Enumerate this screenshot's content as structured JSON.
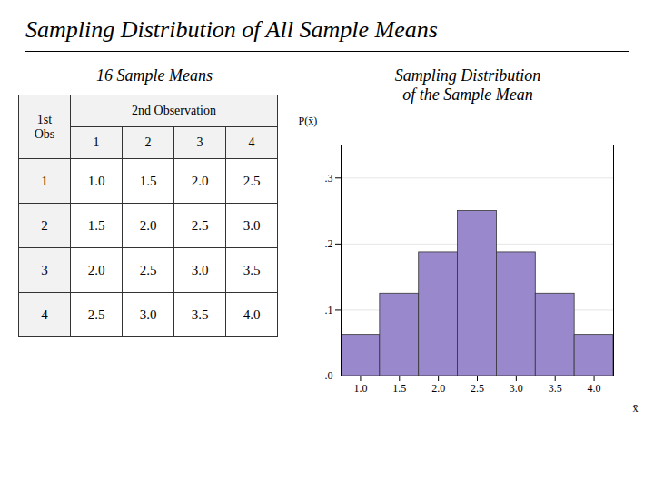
{
  "chart_data": {
    "type": "bar",
    "title": "Sampling Distribution of All Sample Means",
    "subtitle": [
      "Sampling Distribution",
      "of the Sample Mean"
    ],
    "x": [
      1.0,
      1.5,
      2.0,
      2.5,
      3.0,
      3.5,
      4.0
    ],
    "values": [
      0.0625,
      0.125,
      0.1875,
      0.25,
      0.1875,
      0.125,
      0.0625
    ],
    "color": "#9988cc",
    "xlim": [
      0.75,
      4.25
    ],
    "xticks": [
      {
        "value": 1.0,
        "label": "1.0"
      },
      {
        "value": 1.5,
        "label": "1.5"
      },
      {
        "value": 2.0,
        "label": "2.0"
      },
      {
        "value": 2.5,
        "label": "2.5"
      },
      {
        "value": 3.0,
        "label": "3.0"
      },
      {
        "value": 3.5,
        "label": "3.5"
      },
      {
        "value": 4.0,
        "label": "4.0"
      }
    ],
    "ylim": [
      0,
      0.35
    ],
    "yticks": [
      {
        "value": 0.0,
        "label": ".0"
      },
      {
        "value": 0.1,
        "label": ".1"
      },
      {
        "value": 0.2,
        "label": ".2"
      },
      {
        "value": 0.3,
        "label": ".3"
      }
    ],
    "grid": true,
    "x_label": "x̄",
    "y_label": "P(x̄)",
    "table": {
      "title": "16 Sample Means",
      "corner": "1st\nObs",
      "header": "2nd Observation",
      "columns": [
        1,
        2,
        3,
        4
      ],
      "row_labels": [
        1,
        2,
        3,
        4
      ],
      "values": [
        [
          1.0,
          1.5,
          2.0,
          2.5
        ],
        [
          1.5,
          2.0,
          2.5,
          3.0
        ],
        [
          2.0,
          2.5,
          3.0,
          3.5
        ],
        [
          2.5,
          3.0,
          3.5,
          4.0
        ]
      ],
      "value_labels": [
        [
          "1.0",
          "1.5",
          "2.0",
          "2.5"
        ],
        [
          "1.5",
          "2.0",
          "2.5",
          "3.0"
        ],
        [
          "2.0",
          "2.5",
          "3.0",
          "3.5"
        ],
        [
          "2.5",
          "3.0",
          "3.5",
          "4.0"
        ]
      ]
    }
  }
}
